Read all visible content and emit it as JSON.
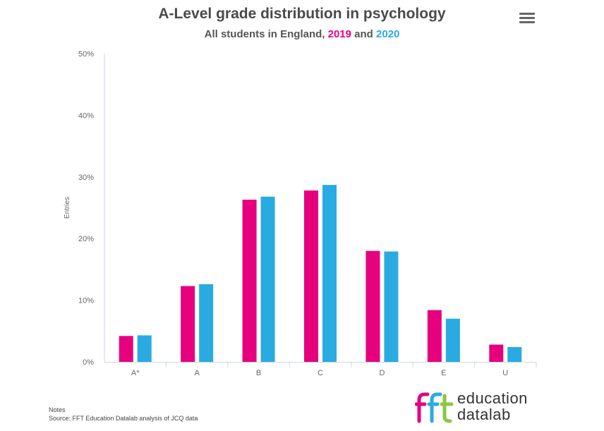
{
  "header": {
    "title": "A-Level grade distribution in psychology",
    "subtitle_prefix": "All students in England,",
    "subtitle_year1": "2019",
    "subtitle_and": "and",
    "subtitle_year2": "2020"
  },
  "menu": {
    "icon": "hamburger-menu-icon"
  },
  "colors": {
    "series_2019": "#e6007e",
    "series_2020": "#29abe2"
  },
  "chart_data": {
    "type": "bar",
    "title": "A-Level grade distribution in psychology",
    "subtitle": "All students in England, 2019 and 2020",
    "xlabel": "",
    "ylabel": "Entries",
    "categories": [
      "A*",
      "A",
      "B",
      "C",
      "D",
      "E",
      "U"
    ],
    "series": [
      {
        "name": "2019",
        "color": "#e6007e",
        "values": [
          4.2,
          12.3,
          26.3,
          27.8,
          18.0,
          8.4,
          2.8
        ]
      },
      {
        "name": "2020",
        "color": "#29abe2",
        "values": [
          4.3,
          12.6,
          26.8,
          28.7,
          17.9,
          7.0,
          2.4
        ]
      }
    ],
    "ylim": [
      0,
      50
    ],
    "yticks": [
      "0%",
      "10%",
      "20%",
      "30%",
      "40%",
      "50%"
    ],
    "grid": false
  },
  "notes": {
    "label": "Notes",
    "source": "Source: FFT Education Datalab analysis of JCQ data"
  },
  "logo": {
    "line1": "education",
    "line2": "datalab"
  }
}
